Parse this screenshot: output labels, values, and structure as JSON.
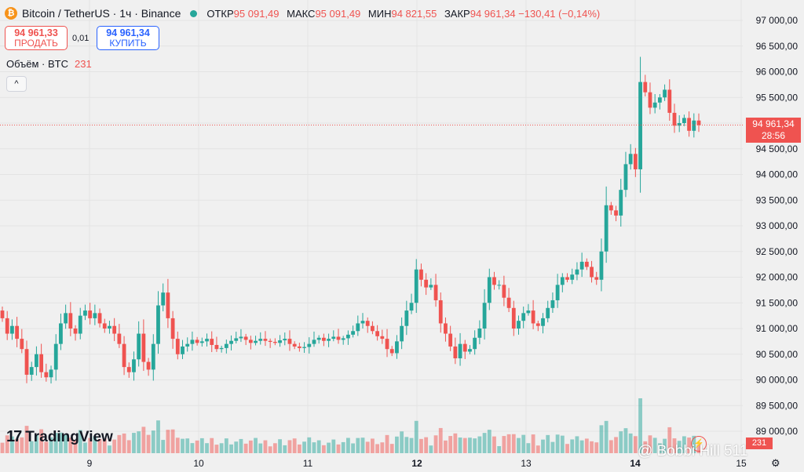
{
  "header": {
    "coin_icon": "bitcoin-icon",
    "coin_glyph": "₿",
    "symbol": "Bitcoin / TetherUS · 1ч · Binance",
    "ohlc": [
      {
        "label": "ОТКР",
        "value": "95 091,49"
      },
      {
        "label": "МАКС",
        "value": "95 091,49"
      },
      {
        "label": "МИН",
        "value": "94 821,55"
      },
      {
        "label": "ЗАКР",
        "value": "94 961,34 −130,41 (−0,14%)"
      }
    ]
  },
  "trade": {
    "sell_price": "94 961,33",
    "sell_label": "ПРОДАТЬ",
    "spread": "0,01",
    "buy_price": "94 961,34",
    "buy_label": "КУПИТЬ"
  },
  "volume_legend": {
    "label": "Объём · BTC",
    "value": "231"
  },
  "collapse_glyph": "^",
  "logo": {
    "mark": "17",
    "text": "TradingView"
  },
  "last_price": {
    "price": "94 961,34",
    "countdown": "28:56"
  },
  "last_volume": "231",
  "watermark": "@ Bobbi Hill 511",
  "colors": {
    "up": "#26a69a",
    "down": "#ef5350",
    "background": "#f0f0f0",
    "grid": "#e3e3e3"
  },
  "chart_data": {
    "type": "candlestick",
    "y_axis": {
      "ticks": [
        "97 000,00",
        "96 500,00",
        "96 000,00",
        "95 500,00",
        "95 000,00",
        "94 500,00",
        "94 000,00",
        "93 500,00",
        "93 000,00",
        "92 500,00",
        "92 000,00",
        "91 500,00",
        "91 000,00",
        "90 500,00",
        "90 000,00",
        "89 500,00",
        "89 000,00"
      ],
      "ylim": [
        88950,
        97100
      ]
    },
    "x_axis": {
      "ticks": [
        "9",
        "10",
        "11",
        "12",
        "13",
        "14",
        "15"
      ],
      "bold": [
        "12",
        "14"
      ]
    },
    "last_price_value": 94961.34,
    "closes": [
      91200,
      90900,
      91050,
      90800,
      90600,
      90100,
      90250,
      90500,
      90150,
      90050,
      90200,
      90700,
      91100,
      91300,
      91000,
      90900,
      91250,
      91350,
      91200,
      91300,
      91100,
      91000,
      91050,
      90900,
      90700,
      90250,
      90150,
      90400,
      90900,
      90350,
      90200,
      90700,
      91450,
      91700,
      91200,
      90800,
      90500,
      90650,
      90700,
      90780,
      90720,
      90750,
      90800,
      90680,
      90600,
      90620,
      90700,
      90760,
      90810,
      90840,
      90780,
      90720,
      90760,
      90800,
      90760,
      90740,
      90720,
      90770,
      90800,
      90700,
      90650,
      90620,
      90640,
      90700,
      90780,
      90820,
      90760,
      90800,
      90840,
      90780,
      90810,
      90880,
      90950,
      91100,
      91150,
      91050,
      90950,
      90850,
      90800,
      90600,
      90520,
      90750,
      91050,
      91350,
      91500,
      92150,
      91950,
      91800,
      91850,
      91550,
      91100,
      90900,
      90650,
      90420,
      90700,
      90550,
      90600,
      90820,
      91000,
      91500,
      92000,
      91850,
      91850,
      91600,
      91400,
      91000,
      91150,
      91300,
      91350,
      91100,
      91050,
      91200,
      91400,
      91550,
      91850,
      92000,
      91950,
      92050,
      92150,
      92300,
      92200,
      92000,
      91950,
      92500,
      93400,
      93300,
      93200,
      93700,
      94200,
      94400,
      94100,
      95800,
      95600,
      95300,
      95400,
      95500,
      95650,
      95200,
      94950,
      95000,
      95100,
      94850,
      95050,
      94961
    ]
  }
}
